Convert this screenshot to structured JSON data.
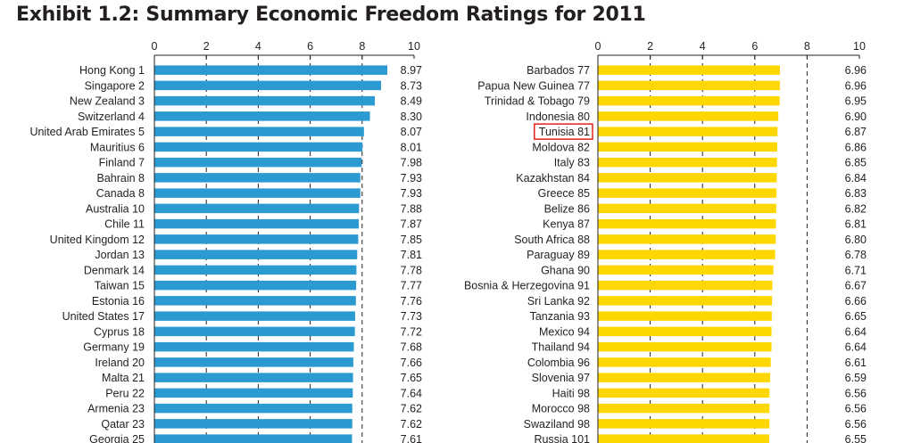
{
  "title": "Exhibit 1.2: Summary Economic Freedom Ratings for 2011",
  "colors": {
    "left_bars": "#2a9ad1",
    "right_bars": "#ffd700",
    "highlight": "#e2231a"
  },
  "chart_data": [
    {
      "type": "bar",
      "orientation": "horizontal",
      "xlim": [
        0,
        10
      ],
      "xticks": [
        "0",
        "2",
        "4",
        "6",
        "8",
        "10"
      ],
      "gridlines_at": [
        2,
        4,
        6,
        8
      ],
      "color": "#2a9ad1",
      "rows": [
        {
          "country": "Hong Kong",
          "rank": "1",
          "value": 8.97,
          "label": "8.97"
        },
        {
          "country": "Singapore",
          "rank": "2",
          "value": 8.73,
          "label": "8.73"
        },
        {
          "country": "New Zealand",
          "rank": "3",
          "value": 8.49,
          "label": "8.49"
        },
        {
          "country": "Switzerland",
          "rank": "4",
          "value": 8.3,
          "label": "8.30"
        },
        {
          "country": "United Arab Emirates",
          "rank": "5",
          "value": 8.07,
          "label": "8.07"
        },
        {
          "country": "Mauritius",
          "rank": "6",
          "value": 8.01,
          "label": "8.01"
        },
        {
          "country": "Finland",
          "rank": "7",
          "value": 7.98,
          "label": "7.98"
        },
        {
          "country": "Bahrain",
          "rank": "8",
          "value": 7.93,
          "label": "7.93"
        },
        {
          "country": "Canada",
          "rank": "8",
          "value": 7.93,
          "label": "7.93"
        },
        {
          "country": "Australia",
          "rank": "10",
          "value": 7.88,
          "label": "7.88"
        },
        {
          "country": "Chile",
          "rank": "11",
          "value": 7.87,
          "label": "7.87"
        },
        {
          "country": "United Kingdom",
          "rank": "12",
          "value": 7.85,
          "label": "7.85"
        },
        {
          "country": "Jordan",
          "rank": "13",
          "value": 7.81,
          "label": "7.81"
        },
        {
          "country": "Denmark",
          "rank": "14",
          "value": 7.78,
          "label": "7.78"
        },
        {
          "country": "Taiwan",
          "rank": "15",
          "value": 7.77,
          "label": "7.77"
        },
        {
          "country": "Estonia",
          "rank": "16",
          "value": 7.76,
          "label": "7.76"
        },
        {
          "country": "United States",
          "rank": "17",
          "value": 7.73,
          "label": "7.73"
        },
        {
          "country": "Cyprus",
          "rank": "18",
          "value": 7.72,
          "label": "7.72"
        },
        {
          "country": "Germany",
          "rank": "19",
          "value": 7.68,
          "label": "7.68"
        },
        {
          "country": "Ireland",
          "rank": "20",
          "value": 7.66,
          "label": "7.66"
        },
        {
          "country": "Malta",
          "rank": "21",
          "value": 7.65,
          "label": "7.65"
        },
        {
          "country": "Peru",
          "rank": "22",
          "value": 7.64,
          "label": "7.64"
        },
        {
          "country": "Armenia",
          "rank": "23",
          "value": 7.62,
          "label": "7.62"
        },
        {
          "country": "Qatar",
          "rank": "23",
          "value": 7.62,
          "label": "7.62"
        },
        {
          "country": "Georgia",
          "rank": "25",
          "value": 7.61,
          "label": "7.61"
        }
      ]
    },
    {
      "type": "bar",
      "orientation": "horizontal",
      "xlim": [
        0,
        10
      ],
      "xticks": [
        "0",
        "2",
        "4",
        "6",
        "8",
        "10"
      ],
      "gridlines_at": [
        2,
        4,
        6,
        8
      ],
      "color": "#ffd700",
      "highlighted_country": "Tunisia",
      "rows": [
        {
          "country": "Barbados",
          "rank": "77",
          "value": 6.96,
          "label": "6.96"
        },
        {
          "country": "Papua New Guinea",
          "rank": "77",
          "value": 6.96,
          "label": "6.96"
        },
        {
          "country": "Trinidad & Tobago",
          "rank": "79",
          "value": 6.95,
          "label": "6.95"
        },
        {
          "country": "Indonesia",
          "rank": "80",
          "value": 6.9,
          "label": "6.90"
        },
        {
          "country": "Tunisia",
          "rank": "81",
          "value": 6.87,
          "label": "6.87"
        },
        {
          "country": "Moldova",
          "rank": "82",
          "value": 6.86,
          "label": "6.86"
        },
        {
          "country": "Italy",
          "rank": "83",
          "value": 6.85,
          "label": "6.85"
        },
        {
          "country": "Kazakhstan",
          "rank": "84",
          "value": 6.84,
          "label": "6.84"
        },
        {
          "country": "Greece",
          "rank": "85",
          "value": 6.83,
          "label": "6.83"
        },
        {
          "country": "Belize",
          "rank": "86",
          "value": 6.82,
          "label": "6.82"
        },
        {
          "country": "Kenya",
          "rank": "87",
          "value": 6.81,
          "label": "6.81"
        },
        {
          "country": "South Africa",
          "rank": "88",
          "value": 6.8,
          "label": "6.80"
        },
        {
          "country": "Paraguay",
          "rank": "89",
          "value": 6.78,
          "label": "6.78"
        },
        {
          "country": "Ghana",
          "rank": "90",
          "value": 6.71,
          "label": "6.71"
        },
        {
          "country": "Bosnia & Herzegovina",
          "rank": "91",
          "value": 6.67,
          "label": "6.67"
        },
        {
          "country": "Sri Lanka",
          "rank": "92",
          "value": 6.66,
          "label": "6.66"
        },
        {
          "country": "Tanzania",
          "rank": "93",
          "value": 6.65,
          "label": "6.65"
        },
        {
          "country": "Mexico",
          "rank": "94",
          "value": 6.64,
          "label": "6.64"
        },
        {
          "country": "Thailand",
          "rank": "94",
          "value": 6.64,
          "label": "6.64"
        },
        {
          "country": "Colombia",
          "rank": "96",
          "value": 6.61,
          "label": "6.61"
        },
        {
          "country": "Slovenia",
          "rank": "97",
          "value": 6.59,
          "label": "6.59"
        },
        {
          "country": "Haiti",
          "rank": "98",
          "value": 6.56,
          "label": "6.56"
        },
        {
          "country": "Morocco",
          "rank": "98",
          "value": 6.56,
          "label": "6.56"
        },
        {
          "country": "Swaziland",
          "rank": "98",
          "value": 6.56,
          "label": "6.56"
        },
        {
          "country": "Russia",
          "rank": "101",
          "value": 6.55,
          "label": "6.55"
        }
      ]
    }
  ]
}
